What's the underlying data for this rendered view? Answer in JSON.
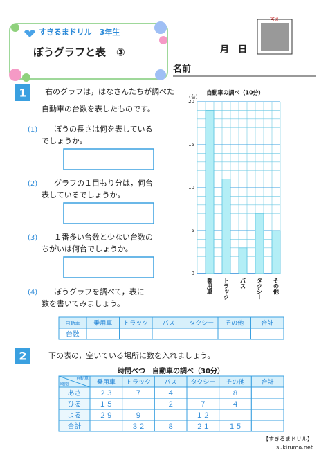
{
  "header": {
    "brand": "すきるまドリル　3年生",
    "title": "ぼうグラフと表　③",
    "month": "月",
    "day": "日",
    "name": "名前",
    "qr_label": "答え"
  },
  "q1": {
    "number": "1",
    "text": [
      "右のグラフは，はなさんたちが調べた",
      "自動車の台数を表したものです。"
    ],
    "items": [
      {
        "number": "(1)",
        "text": [
          "ぼうの長さは何を表している",
          "でしょうか。"
        ]
      },
      {
        "number": "(2)",
        "text": [
          "グラフの１目もり分は，何台",
          "表しているでしょうか。"
        ]
      },
      {
        "number": "(3)",
        "text": [
          "１番多い台数と少ない台数の",
          "ちがいは何台でしょうか。"
        ]
      },
      {
        "number": "(4)",
        "text": [
          "ぼうグラフを調べて，表に",
          "数を書いてみましょう。"
        ]
      }
    ],
    "table": {
      "header": [
        "自動車",
        "乗用車",
        "トラック",
        "バス",
        "タクシー",
        "その他",
        "合計"
      ],
      "rows": [
        [
          "台数",
          null,
          null,
          null,
          null,
          null,
          null
        ]
      ]
    }
  },
  "chart_data": {
    "type": "bar",
    "title": "自動車の調べ（10分）",
    "y_label": "(台)",
    "categories": [
      "乗用車",
      "トラック",
      "バス",
      "タクシー",
      "その他"
    ],
    "values": [
      19,
      11,
      3,
      7,
      5
    ],
    "color": "#b3eef6",
    "ylim": [
      0,
      20
    ],
    "yticks": [
      0,
      5,
      10,
      15,
      20
    ],
    "grid": true,
    "minor_grid_step": 1
  },
  "q2": {
    "number": "2",
    "text": "下の表の，空いている場所に数を入れましょう。",
    "table": {
      "title": "時間べつ　自動車の調べ（30分）",
      "corner": [
        "自動車",
        "時間"
      ],
      "header": [
        "乗用車",
        "トラック",
        "バス",
        "タクシー",
        "その他",
        "合計"
      ],
      "rows": [
        [
          "あさ",
          "２３",
          "７",
          "４",
          null,
          "８",
          null
        ],
        [
          "ひる",
          "１５",
          null,
          "２",
          "７",
          "４",
          null
        ],
        [
          "よる",
          "２９",
          "９",
          null,
          "１２",
          null,
          null
        ],
        [
          "合計",
          null,
          "３２",
          "８",
          "２１",
          "１５",
          null
        ]
      ]
    }
  },
  "footer": [
    "【すきるまドリル】",
    "sukiruma.net"
  ]
}
